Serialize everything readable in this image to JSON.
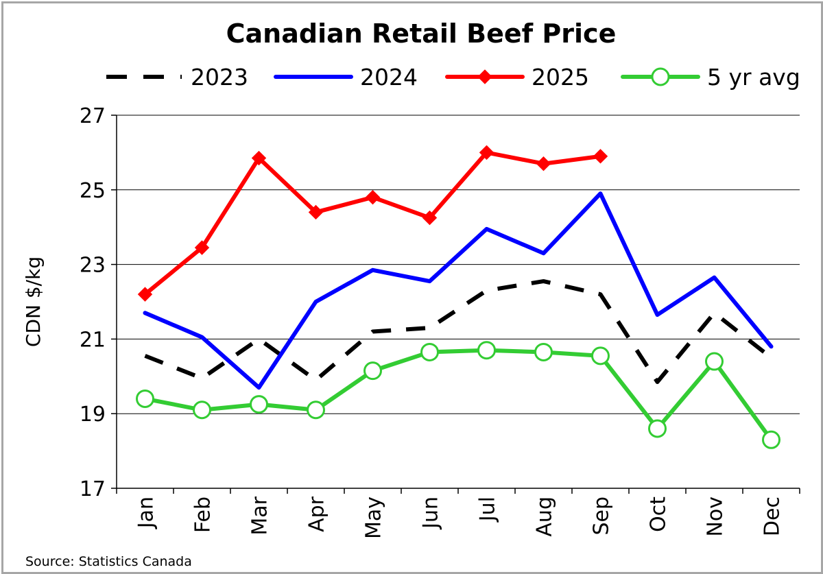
{
  "chart_data": {
    "type": "line",
    "title": "Canadian Retail Beef Price",
    "ylabel": "CDN $/kg",
    "xlabel": "",
    "source": "Source: Statistics Canada",
    "categories": [
      "Jan",
      "Feb",
      "Mar",
      "Apr",
      "May",
      "Jun",
      "Jul",
      "Aug",
      "Sep",
      "Oct",
      "Nov",
      "Dec"
    ],
    "ylim": [
      17,
      27
    ],
    "yticks": [
      17,
      19,
      21,
      23,
      25,
      27
    ],
    "grid": "horizontal",
    "legend_position": "top",
    "series": [
      {
        "name": "2023",
        "color": "#000000",
        "style": "dashed",
        "marker": "none",
        "values": [
          20.55,
          19.95,
          21.0,
          19.9,
          21.2,
          21.3,
          22.3,
          22.55,
          22.2,
          19.85,
          21.7,
          20.5
        ]
      },
      {
        "name": "2024",
        "color": "#0000ff",
        "style": "solid",
        "marker": "none",
        "values": [
          21.7,
          21.05,
          19.7,
          22.0,
          22.85,
          22.55,
          23.95,
          23.3,
          24.9,
          21.65,
          22.65,
          20.8
        ]
      },
      {
        "name": "2025",
        "color": "#ff0000",
        "style": "solid",
        "marker": "diamond",
        "values": [
          22.2,
          23.45,
          25.85,
          24.4,
          24.8,
          24.25,
          26.0,
          25.7,
          25.9,
          null,
          null,
          null
        ]
      },
      {
        "name": "5 yr avg",
        "color": "#33cc33",
        "style": "solid",
        "marker": "open-circle",
        "values": [
          19.4,
          19.1,
          19.25,
          19.1,
          20.15,
          20.65,
          20.7,
          20.65,
          20.55,
          18.6,
          20.4,
          18.3
        ]
      }
    ]
  }
}
